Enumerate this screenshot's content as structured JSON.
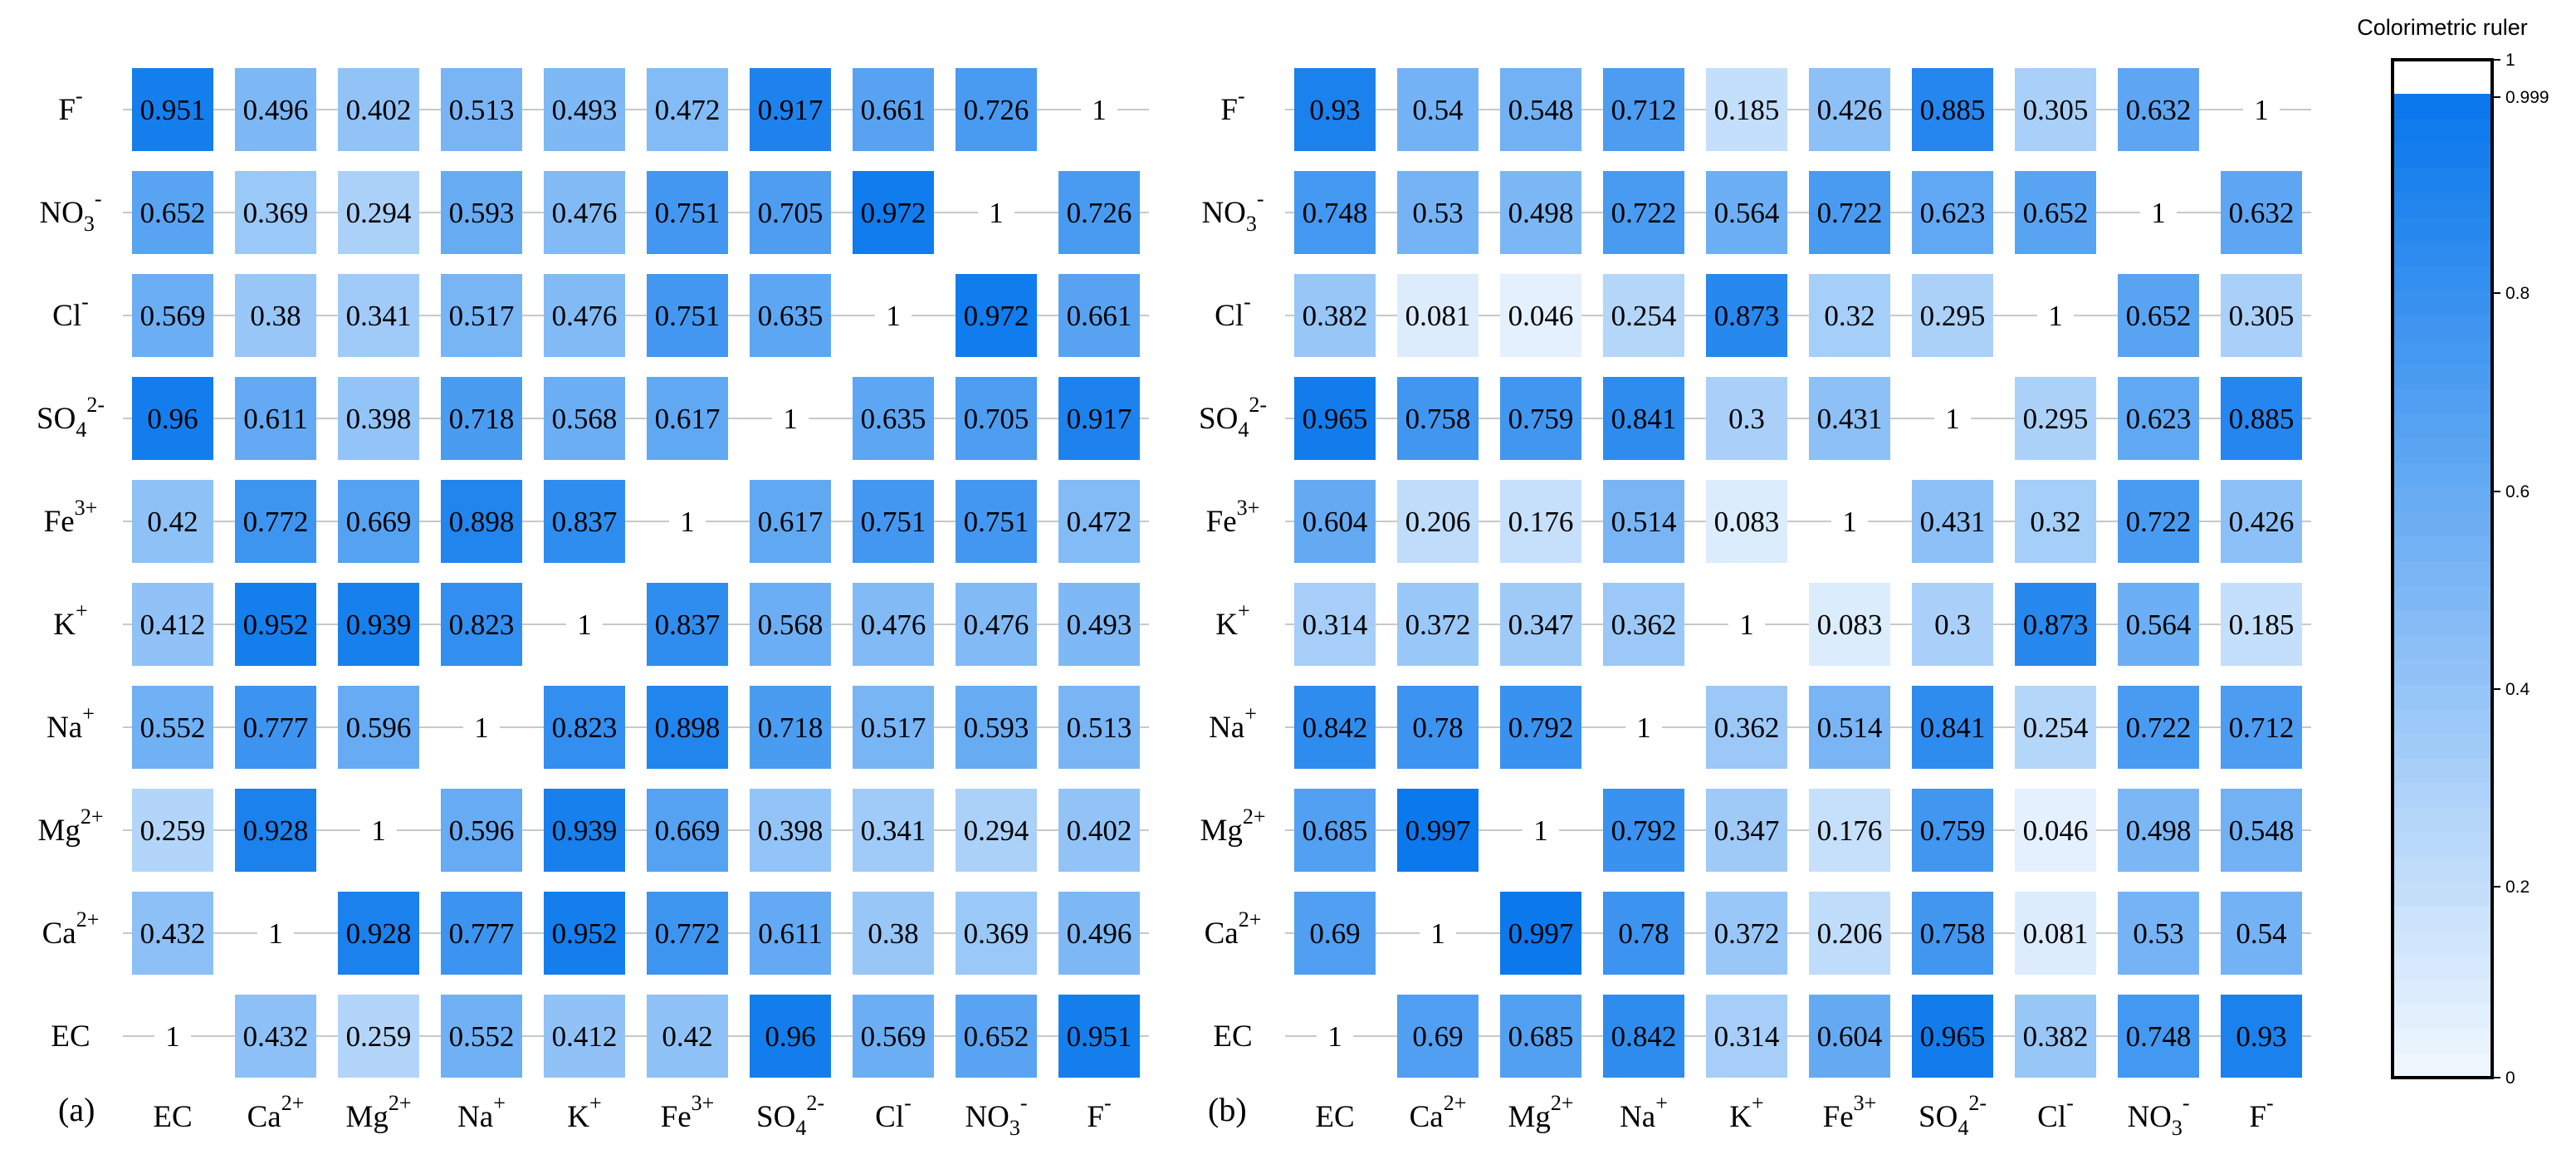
{
  "chart_data": [
    {
      "type": "heatmap",
      "panel_label": "(a)",
      "categories": [
        "EC",
        "Ca2+",
        "Mg2+",
        "Na+",
        "K+",
        "Fe3+",
        "SO42-",
        "Cl-",
        "NO3-",
        "F-"
      ],
      "rows_top_to_bottom": [
        "F-",
        "NO3-",
        "Cl-",
        "SO42-",
        "Fe3+",
        "K+",
        "Na+",
        "Mg2+",
        "Ca2+",
        "EC"
      ],
      "values": [
        [
          "0.951",
          "0.496",
          "0.402",
          "0.513",
          "0.493",
          "0.472",
          "0.917",
          "0.661",
          "0.726",
          "1"
        ],
        [
          "0.652",
          "0.369",
          "0.294",
          "0.593",
          "0.476",
          "0.751",
          "0.705",
          "0.972",
          "1",
          "0.726"
        ],
        [
          "0.569",
          "0.38",
          "0.341",
          "0.517",
          "0.476",
          "0.751",
          "0.635",
          "1",
          "0.972",
          "0.661"
        ],
        [
          "0.96",
          "0.611",
          "0.398",
          "0.718",
          "0.568",
          "0.617",
          "1",
          "0.635",
          "0.705",
          "0.917"
        ],
        [
          "0.42",
          "0.772",
          "0.669",
          "0.898",
          "0.837",
          "1",
          "0.617",
          "0.751",
          "0.751",
          "0.472"
        ],
        [
          "0.412",
          "0.952",
          "0.939",
          "0.823",
          "1",
          "0.837",
          "0.568",
          "0.476",
          "0.476",
          "0.493"
        ],
        [
          "0.552",
          "0.777",
          "0.596",
          "1",
          "0.823",
          "0.898",
          "0.718",
          "0.517",
          "0.593",
          "0.513"
        ],
        [
          "0.259",
          "0.928",
          "1",
          "0.596",
          "0.939",
          "0.669",
          "0.398",
          "0.341",
          "0.294",
          "0.402"
        ],
        [
          "0.432",
          "1",
          "0.928",
          "0.777",
          "0.952",
          "0.772",
          "0.611",
          "0.38",
          "0.369",
          "0.496"
        ],
        [
          "1",
          "0.432",
          "0.259",
          "0.552",
          "0.412",
          "0.42",
          "0.96",
          "0.569",
          "0.652",
          "0.951"
        ]
      ]
    },
    {
      "type": "heatmap",
      "panel_label": "(b)",
      "categories": [
        "EC",
        "Ca2+",
        "Mg2+",
        "Na+",
        "K+",
        "Fe3+",
        "SO42-",
        "Cl-",
        "NO3-",
        "F-"
      ],
      "rows_top_to_bottom": [
        "F-",
        "NO3-",
        "Cl-",
        "SO42-",
        "Fe3+",
        "K+",
        "Na+",
        "Mg2+",
        "Ca2+",
        "EC"
      ],
      "values": [
        [
          "0.93",
          "0.54",
          "0.548",
          "0.712",
          "0.185",
          "0.426",
          "0.885",
          "0.305",
          "0.632",
          "1"
        ],
        [
          "0.748",
          "0.53",
          "0.498",
          "0.722",
          "0.564",
          "0.722",
          "0.623",
          "0.652",
          "1",
          "0.632"
        ],
        [
          "0.382",
          "0.081",
          "0.046",
          "0.254",
          "0.873",
          "0.32",
          "0.295",
          "1",
          "0.652",
          "0.305"
        ],
        [
          "0.965",
          "0.758",
          "0.759",
          "0.841",
          "0.3",
          "0.431",
          "1",
          "0.295",
          "0.623",
          "0.885"
        ],
        [
          "0.604",
          "0.206",
          "0.176",
          "0.514",
          "0.083",
          "1",
          "0.431",
          "0.32",
          "0.722",
          "0.426"
        ],
        [
          "0.314",
          "0.372",
          "0.347",
          "0.362",
          "1",
          "0.083",
          "0.3",
          "0.873",
          "0.564",
          "0.185"
        ],
        [
          "0.842",
          "0.78",
          "0.792",
          "1",
          "0.362",
          "0.514",
          "0.841",
          "0.254",
          "0.722",
          "0.712"
        ],
        [
          "0.685",
          "0.997",
          "1",
          "0.792",
          "0.347",
          "0.176",
          "0.759",
          "0.046",
          "0.498",
          "0.548"
        ],
        [
          "0.69",
          "1",
          "0.997",
          "0.78",
          "0.372",
          "0.206",
          "0.758",
          "0.081",
          "0.53",
          "0.54"
        ],
        [
          "1",
          "0.69",
          "0.685",
          "0.842",
          "0.314",
          "0.604",
          "0.965",
          "0.382",
          "0.748",
          "0.93"
        ]
      ]
    }
  ],
  "colorbar": {
    "title": "Colorimetric ruler",
    "ticks": [
      "1",
      "0.999",
      "0.8",
      "0.6",
      "0.4",
      "0.2",
      "0"
    ],
    "top_color": "#ffffff",
    "gradient_start": "#eef6fe",
    "gradient_end": "#0a78ec"
  },
  "labels": {
    "EC": {
      "base": "EC",
      "sup": ""
    },
    "Ca2+": {
      "base": "Ca",
      "sup": "2+"
    },
    "Mg2+": {
      "base": "Mg",
      "sup": "2+"
    },
    "Na+": {
      "base": "Na",
      "sup": "+"
    },
    "K+": {
      "base": "K",
      "sup": "+"
    },
    "Fe3+": {
      "base": "Fe",
      "sup": "3+"
    },
    "SO42-": {
      "base": "SO",
      "sub": "4",
      "sup": "2-"
    },
    "Cl-": {
      "base": "Cl",
      "sup": "-"
    },
    "NO3-": {
      "base": "NO",
      "sub": "3",
      "sup": "-"
    },
    "F-": {
      "base": "F",
      "sup": "-"
    }
  },
  "grid_color": "#c8c8c8"
}
